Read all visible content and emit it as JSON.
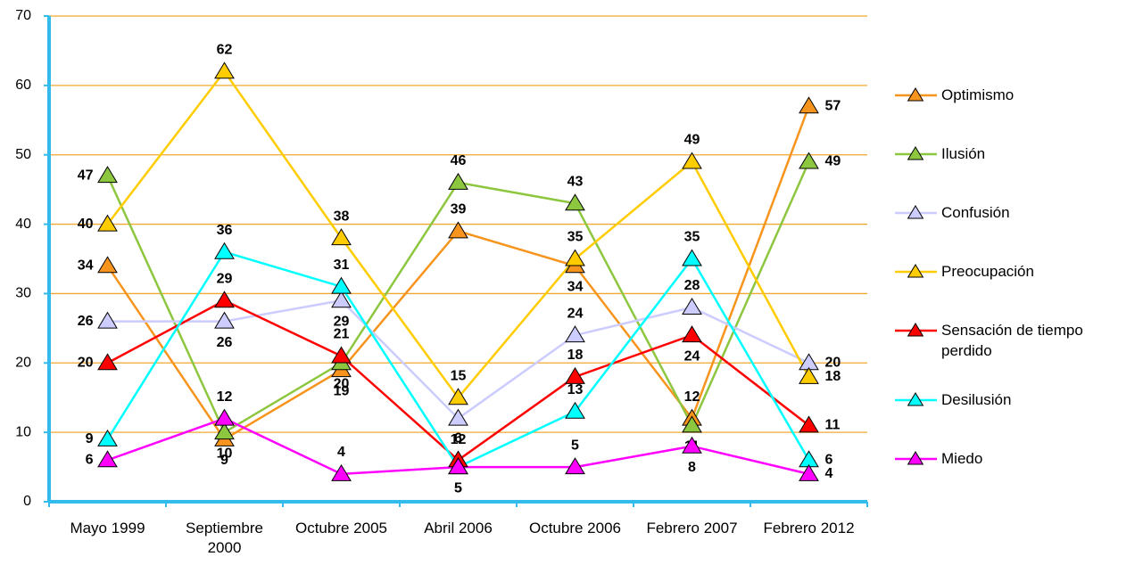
{
  "chart_data": {
    "type": "line",
    "categories": [
      "Mayo 1999",
      "Septiembre 2000",
      "Octubre 2005",
      "Abril 2006",
      "Octubre 2006",
      "Febrero 2007",
      "Febrero 2012"
    ],
    "series": [
      {
        "name": "Optimismo",
        "color": "#f7941d",
        "values": [
          34,
          9,
          19,
          39,
          34,
          12,
          57
        ]
      },
      {
        "name": "Ilusión",
        "color": "#8dc63f",
        "values": [
          47,
          10,
          20,
          46,
          43,
          11,
          49
        ]
      },
      {
        "name": "Confusión",
        "color": "#ccccff",
        "values": [
          26,
          26,
          29,
          12,
          24,
          28,
          20
        ]
      },
      {
        "name": "Preocupación",
        "color": "#ffcc00",
        "values": [
          40,
          62,
          38,
          15,
          35,
          49,
          18
        ]
      },
      {
        "name": "Sensación de tiempo perdido",
        "color": "#ff0000",
        "values": [
          20,
          29,
          21,
          6,
          18,
          24,
          11
        ]
      },
      {
        "name": "Desilusión",
        "color": "#00ffff",
        "values": [
          9,
          36,
          31,
          5,
          13,
          35,
          6
        ]
      },
      {
        "name": "Miedo",
        "color": "#ff00ff",
        "values": [
          6,
          12,
          4,
          5,
          5,
          8,
          4
        ]
      }
    ],
    "ylim": [
      0,
      70
    ],
    "yticks": [
      0,
      10,
      20,
      30,
      40,
      50,
      60,
      70
    ],
    "grid": true,
    "legend": "right"
  }
}
